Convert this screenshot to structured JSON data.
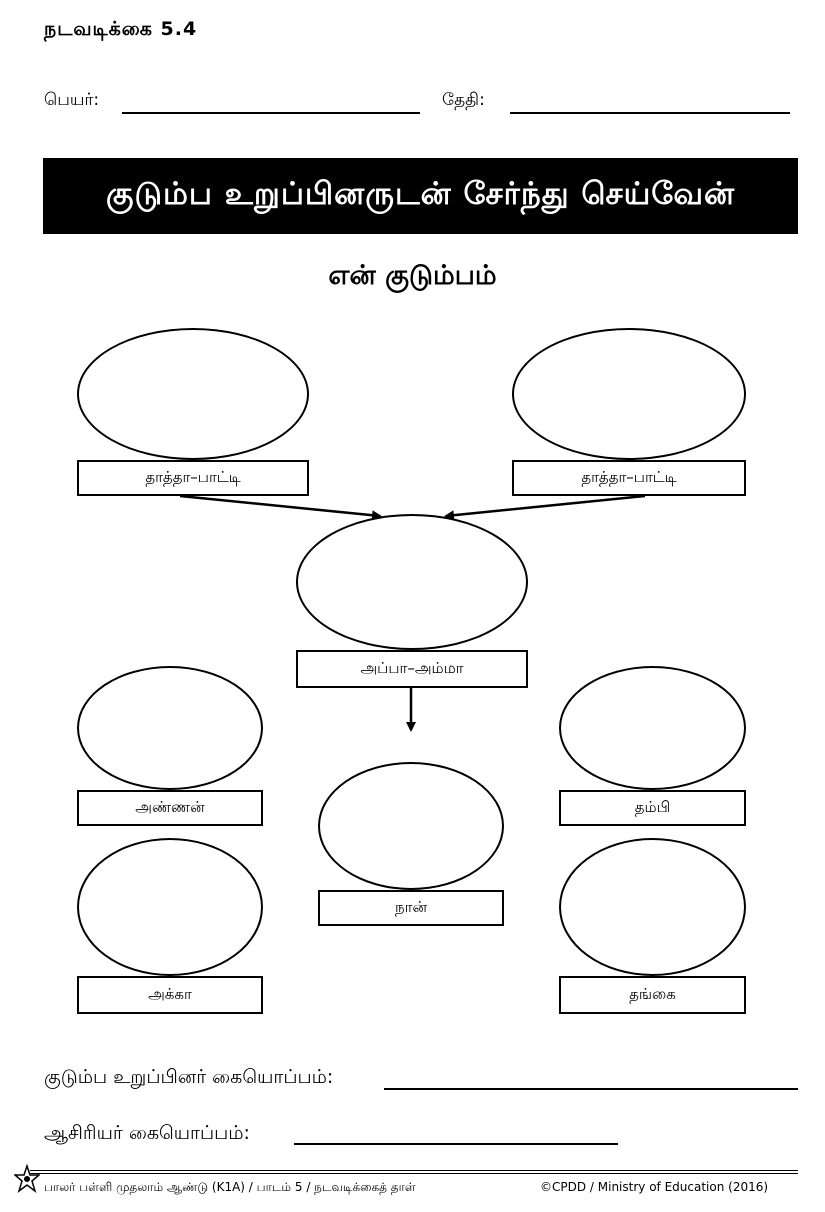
{
  "header": {
    "activity_number": "நடவடிக்கை 5.4",
    "name_label": "பெயர்:",
    "date_label": "தேதி:"
  },
  "banner": {
    "title": "குடும்ப உறுப்பினருடன் சேர்ந்து செய்வேன்"
  },
  "subtitle": "என் குடும்பம்",
  "family_tree": {
    "grandparents_left": "தாத்தா–பாட்டி",
    "grandparents_right": "தாத்தா–பாட்டி",
    "parents": "அப்பா–அம்மா",
    "elder_brother": "அண்ணன்",
    "younger_brother": "தம்பி",
    "me": "நான்",
    "elder_sister": "அக்கா",
    "younger_sister": "தங்கை"
  },
  "signatures": {
    "family_member_label": "குடும்ப உறுப்பினர் கையொப்பம்:",
    "teacher_label": "ஆசிரியர் கையொப்பம்:"
  },
  "footer": {
    "left_text": "பாலர் பள்ளி முதலாம் ஆண்டு (K1A) / பாடம் 5 / நடவடிக்கைத் தாள்",
    "right_text": "©CPDD / Ministry of Education (2016)"
  }
}
